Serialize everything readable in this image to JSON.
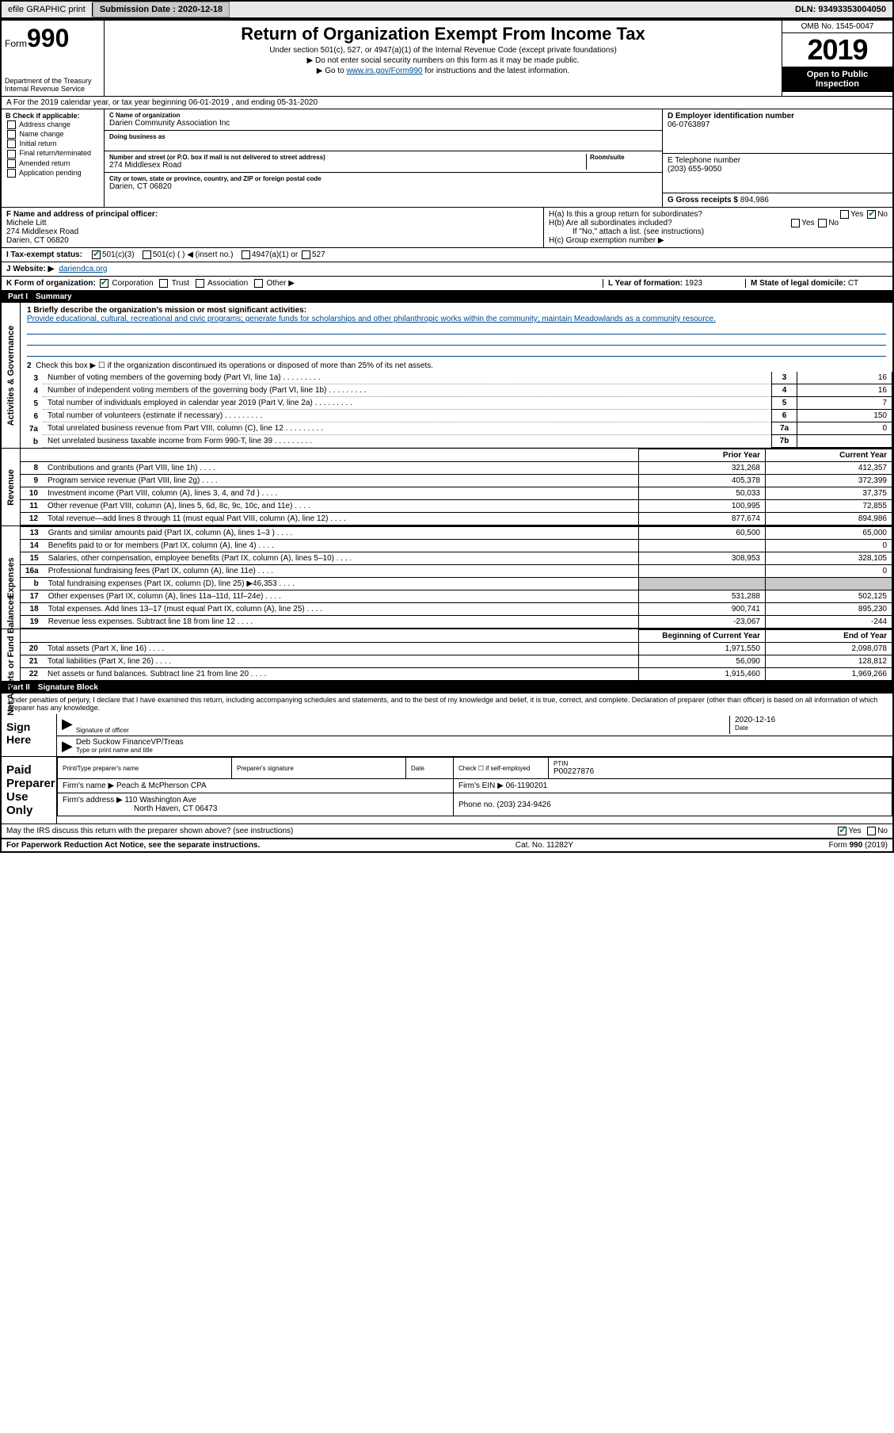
{
  "topbar": {
    "efile": "efile GRAPHIC print",
    "subdate_label": "Submission Date :",
    "subdate": "2020-12-18",
    "dln_label": "DLN:",
    "dln": "93493353004050"
  },
  "header": {
    "form_label": "Form",
    "form_num": "990",
    "dept": "Department of the Treasury\nInternal Revenue Service",
    "title": "Return of Organization Exempt From Income Tax",
    "sub1": "Under section 501(c), 527, or 4947(a)(1) of the Internal Revenue Code (except private foundations)",
    "sub2": "▶ Do not enter social security numbers on this form as it may be made public.",
    "sub3_pre": "▶ Go to ",
    "sub3_link": "www.irs.gov/Form990",
    "sub3_post": " for instructions and the latest information.",
    "omb": "OMB No. 1545-0047",
    "year": "2019",
    "open": "Open to Public Inspection"
  },
  "row_a": "A For the 2019 calendar year, or tax year beginning 06-01-2019   , and ending 05-31-2020",
  "col_b": {
    "title": "B Check if applicable:",
    "opts": [
      "Address change",
      "Name change",
      "Initial return",
      "Final return/terminated",
      "Amended return",
      "Application pending"
    ]
  },
  "col_c": {
    "name_label": "C Name of organization",
    "name": "Darien Community Association Inc",
    "dba_label": "Doing business as",
    "addr_label": "Number and street (or P.O. box if mail is not delivered to street address)",
    "room_label": "Room/suite",
    "addr": "274 Middlesex Road",
    "city_label": "City or town, state or province, country, and ZIP or foreign postal code",
    "city": "Darien, CT  06820"
  },
  "col_d": {
    "label": "D Employer identification number",
    "val": "06-0763897"
  },
  "col_e": {
    "label": "E Telephone number",
    "val": "(203) 655-9050"
  },
  "col_g": {
    "label": "G Gross receipts $",
    "val": "894,986"
  },
  "col_f": {
    "label": "F  Name and address of principal officer:",
    "name": "Michele Litt",
    "addr1": "274 Middlesex Road",
    "addr2": "Darien, CT  06820"
  },
  "col_h": {
    "ha": "H(a)  Is this a group return for subordinates?",
    "hb": "H(b)  Are all subordinates included?",
    "hb_note": "If \"No,\" attach a list. (see instructions)",
    "hc": "H(c)  Group exemption number ▶"
  },
  "row_i": {
    "label": "I    Tax-exempt status:",
    "o1": "501(c)(3)",
    "o2": "501(c) (   ) ◀ (insert no.)",
    "o3": "4947(a)(1) or",
    "o4": "527"
  },
  "row_j": {
    "label": "J   Website: ▶",
    "val": "dariendca.org"
  },
  "row_k": {
    "label": "K Form of organization:",
    "opts": [
      "Corporation",
      "Trust",
      "Association",
      "Other ▶"
    ],
    "l_label": "L Year of formation:",
    "l_val": "1923",
    "m_label": "M State of legal domicile:",
    "m_val": "CT"
  },
  "part1": {
    "num": "Part I",
    "title": "Summary"
  },
  "mission": {
    "label": "1  Briefly describe the organization's mission or most significant activities:",
    "text": "Provide educational, cultural, recreational and civic programs; generate funds for scholarships and other philanthropic works within the community; maintain Meadowlands as a community resource."
  },
  "line2": "Check this box ▶ ☐  if the organization discontinued its operations or disposed of more than 25% of its net assets.",
  "gov_rows": [
    {
      "n": "3",
      "d": "Number of voting members of the governing body (Part VI, line 1a)",
      "b": "3",
      "v": "16"
    },
    {
      "n": "4",
      "d": "Number of independent voting members of the governing body (Part VI, line 1b)",
      "b": "4",
      "v": "16"
    },
    {
      "n": "5",
      "d": "Total number of individuals employed in calendar year 2019 (Part V, line 2a)",
      "b": "5",
      "v": "7"
    },
    {
      "n": "6",
      "d": "Total number of volunteers (estimate if necessary)",
      "b": "6",
      "v": "150"
    },
    {
      "n": "7a",
      "d": "Total unrelated business revenue from Part VIII, column (C), line 12",
      "b": "7a",
      "v": "0"
    },
    {
      "n": "b",
      "d": "Net unrelated business taxable income from Form 990-T, line 39",
      "b": "7b",
      "v": ""
    }
  ],
  "fin_header": {
    "py": "Prior Year",
    "cy": "Current Year"
  },
  "revenue_rows": [
    {
      "n": "8",
      "d": "Contributions and grants (Part VIII, line 1h)",
      "py": "321,268",
      "cy": "412,357"
    },
    {
      "n": "9",
      "d": "Program service revenue (Part VIII, line 2g)",
      "py": "405,378",
      "cy": "372,399"
    },
    {
      "n": "10",
      "d": "Investment income (Part VIII, column (A), lines 3, 4, and 7d )",
      "py": "50,033",
      "cy": "37,375"
    },
    {
      "n": "11",
      "d": "Other revenue (Part VIII, column (A), lines 5, 6d, 8c, 9c, 10c, and 11e)",
      "py": "100,995",
      "cy": "72,855"
    },
    {
      "n": "12",
      "d": "Total revenue—add lines 8 through 11 (must equal Part VIII, column (A), line 12)",
      "py": "877,674",
      "cy": "894,986"
    }
  ],
  "expense_rows": [
    {
      "n": "13",
      "d": "Grants and similar amounts paid (Part IX, column (A), lines 1–3 )",
      "py": "60,500",
      "cy": "65,000"
    },
    {
      "n": "14",
      "d": "Benefits paid to or for members (Part IX, column (A), line 4)",
      "py": "",
      "cy": "0"
    },
    {
      "n": "15",
      "d": "Salaries, other compensation, employee benefits (Part IX, column (A), lines 5–10)",
      "py": "308,953",
      "cy": "328,105"
    },
    {
      "n": "16a",
      "d": "Professional fundraising fees (Part IX, column (A), line 11e)",
      "py": "",
      "cy": "0"
    },
    {
      "n": "b",
      "d": "Total fundraising expenses (Part IX, column (D), line 25) ▶46,353",
      "py": "shaded",
      "cy": "shaded"
    },
    {
      "n": "17",
      "d": "Other expenses (Part IX, column (A), lines 11a–11d, 11f–24e)",
      "py": "531,288",
      "cy": "502,125"
    },
    {
      "n": "18",
      "d": "Total expenses. Add lines 13–17 (must equal Part IX, column (A), line 25)",
      "py": "900,741",
      "cy": "895,230"
    },
    {
      "n": "19",
      "d": "Revenue less expenses. Subtract line 18 from line 12",
      "py": "-23,067",
      "cy": "-244"
    }
  ],
  "net_header": {
    "py": "Beginning of Current Year",
    "cy": "End of Year"
  },
  "net_rows": [
    {
      "n": "20",
      "d": "Total assets (Part X, line 16)",
      "py": "1,971,550",
      "cy": "2,098,078"
    },
    {
      "n": "21",
      "d": "Total liabilities (Part X, line 26)",
      "py": "56,090",
      "cy": "128,812"
    },
    {
      "n": "22",
      "d": "Net assets or fund balances. Subtract line 21 from line 20",
      "py": "1,915,460",
      "cy": "1,969,266"
    }
  ],
  "part2": {
    "num": "Part II",
    "title": "Signature Block"
  },
  "sig": {
    "decl": "Under penalties of perjury, I declare that I have examined this return, including accompanying schedules and statements, and to the best of my knowledge and belief, it is true, correct, and complete. Declaration of preparer (other than officer) is based on all information of which preparer has any knowledge.",
    "sign_here": "Sign Here",
    "sig_officer": "Signature of officer",
    "date_label": "Date",
    "date_val": "2020-12-16",
    "name_title": "Deb Suckow FinanceVP/Treas",
    "name_title_label": "Type or print name and title"
  },
  "prep": {
    "title": "Paid Preparer Use Only",
    "print_label": "Print/Type preparer's name",
    "sig_label": "Preparer's signature",
    "date_label": "Date",
    "check_label": "Check ☐ if self-employed",
    "ptin_label": "PTIN",
    "ptin": "P00227876",
    "firm_name_label": "Firm's name    ▶",
    "firm_name": "Peach & McPherson CPA",
    "firm_ein_label": "Firm's EIN ▶",
    "firm_ein": "06-1190201",
    "firm_addr_label": "Firm's address ▶",
    "firm_addr": "110 Washington Ave",
    "firm_addr2": "North Haven, CT  06473",
    "phone_label": "Phone no.",
    "phone": "(203) 234-9426"
  },
  "discuss": "May the IRS discuss this return with the preparer shown above? (see instructions)",
  "footer": {
    "left": "For Paperwork Reduction Act Notice, see the separate instructions.",
    "mid": "Cat. No. 11282Y",
    "right": "Form 990 (2019)"
  },
  "vlabels": {
    "gov": "Activities & Governance",
    "rev": "Revenue",
    "exp": "Expenses",
    "net": "Net Assets or Fund Balances"
  }
}
